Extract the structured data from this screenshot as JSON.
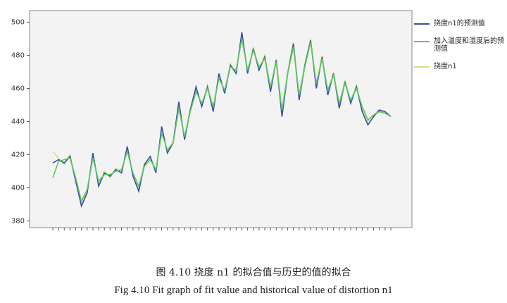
{
  "chart_data": {
    "type": "line",
    "caption_cn": "图 4.10  挠度 n1 的拟合值与历史的值的拟合",
    "caption_en": "Fig 4.10 Fit graph of fit value and historical value of distortion n1",
    "categories": [
      null,
      null,
      null,
      null,
      null,
      null,
      null,
      null,
      null,
      null,
      null,
      null,
      null,
      null,
      null,
      null,
      null,
      null,
      null,
      null,
      null,
      null,
      null,
      null,
      null,
      null,
      null,
      null,
      null,
      null,
      null,
      null,
      null,
      null,
      null,
      null,
      null,
      null,
      null,
      null,
      null,
      null,
      null,
      null,
      null,
      null,
      null,
      null,
      null,
      null,
      null,
      null,
      null,
      null,
      null,
      null,
      null,
      null,
      null,
      null
    ],
    "series": [
      {
        "name": "挠度n1的预测值",
        "color": "#3a4ea8",
        "values": [
          415,
          417,
          415,
          419,
          404,
          389,
          397,
          421,
          401,
          409,
          407,
          411,
          409,
          425,
          407,
          398,
          414,
          419,
          409,
          437,
          421,
          427,
          452,
          429,
          447,
          461,
          449,
          461,
          446,
          469,
          457,
          474,
          469,
          494,
          469,
          484,
          471,
          479,
          458,
          477,
          443,
          469,
          487,
          453,
          474,
          489,
          460,
          479,
          456,
          469,
          448,
          464,
          451,
          461,
          446,
          438,
          443,
          447,
          446,
          443
        ]
      },
      {
        "name": "加入温度和湿度后的预测值",
        "color": "#5fc85f",
        "values": [
          406,
          416,
          417,
          418,
          406,
          392,
          399,
          418,
          404,
          408,
          408,
          410,
          411,
          422,
          409,
          401,
          413,
          417,
          411,
          433,
          423,
          427,
          448,
          431,
          446,
          458,
          451,
          460,
          449,
          466,
          459,
          473,
          471,
          490,
          471,
          483,
          473,
          478,
          461,
          476,
          447,
          469,
          485,
          456,
          473,
          488,
          463,
          478,
          459,
          468,
          451,
          463,
          453,
          460,
          449,
          441,
          444,
          446,
          445,
          443
        ]
      },
      {
        "name": "挠度n1",
        "color": "#c9e38a",
        "values": [
          422,
          418,
          414,
          420,
          405,
          390,
          398,
          420,
          402,
          410,
          406,
          412,
          410,
          424,
          408,
          400,
          415,
          418,
          410,
          435,
          422,
          428,
          450,
          430,
          448,
          460,
          450,
          462,
          448,
          468,
          458,
          475,
          470,
          492,
          470,
          485,
          472,
          480,
          460,
          478,
          445,
          470,
          488,
          455,
          475,
          490,
          462,
          480,
          458,
          470,
          450,
          465,
          452,
          462,
          448,
          440,
          444,
          447,
          445,
          443
        ]
      }
    ],
    "ylim": [
      376,
      507
    ],
    "yticks": [
      380,
      400,
      420,
      440,
      460,
      480,
      500
    ],
    "grid": false
  }
}
